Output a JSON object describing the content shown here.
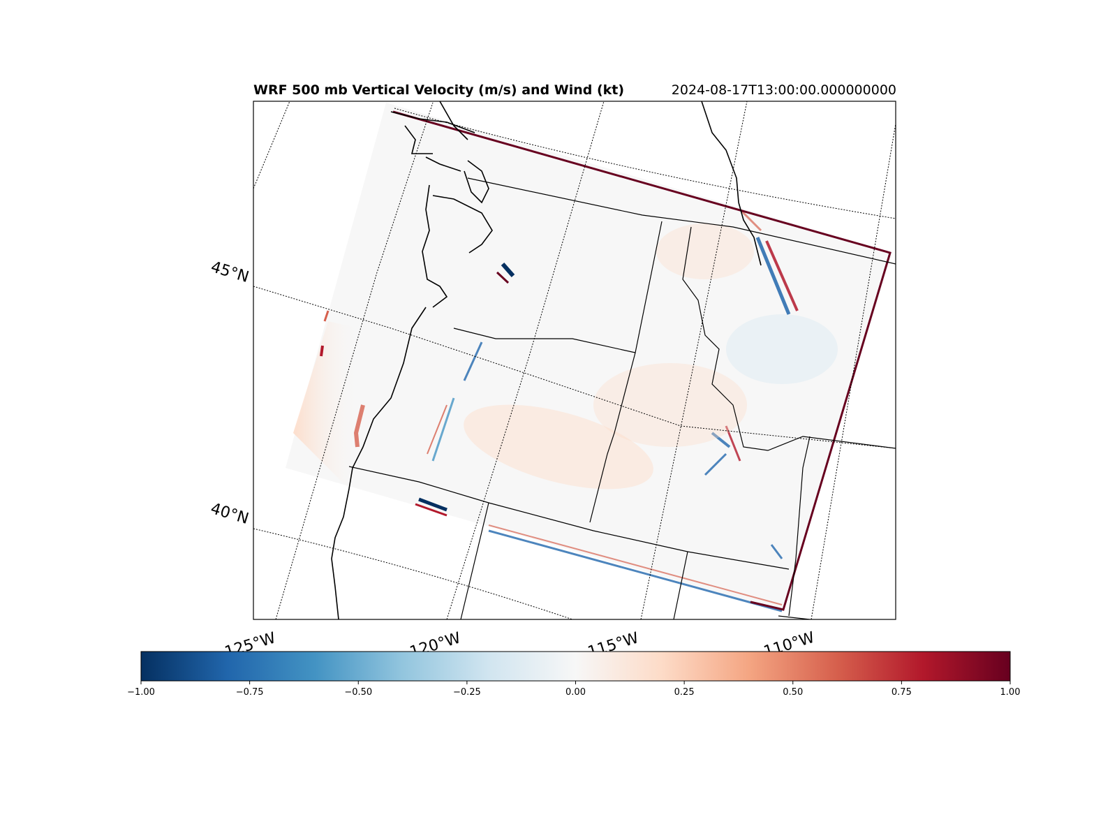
{
  "title": "WRF 500 mb Vertical Velocity (m/s) and Wind (kt)",
  "timestamp": "2024-08-17T13:00:00.000000000",
  "latitude_labels": [
    "45°N",
    "40°N"
  ],
  "longitude_labels": [
    "125°W",
    "120°W",
    "115°W",
    "110°W"
  ],
  "colorbar": {
    "colormap": "RdBu_r",
    "min": -1.0,
    "max": 1.0,
    "tick_labels": [
      "−1.00",
      "−0.75",
      "−0.50",
      "−0.25",
      "0.00",
      "0.25",
      "0.50",
      "0.75",
      "1.00"
    ],
    "colors": [
      "#053061",
      "#2166ac",
      "#4393c3",
      "#92c5de",
      "#d1e5f0",
      "#f7f7f7",
      "#fddbc7",
      "#f4a582",
      "#d6604d",
      "#b2182b",
      "#67001f"
    ]
  },
  "colors": {
    "coastline": "#000000",
    "state_borders": "#000000",
    "gridlines": "#000000",
    "field_background": "#f7f7f7"
  }
}
